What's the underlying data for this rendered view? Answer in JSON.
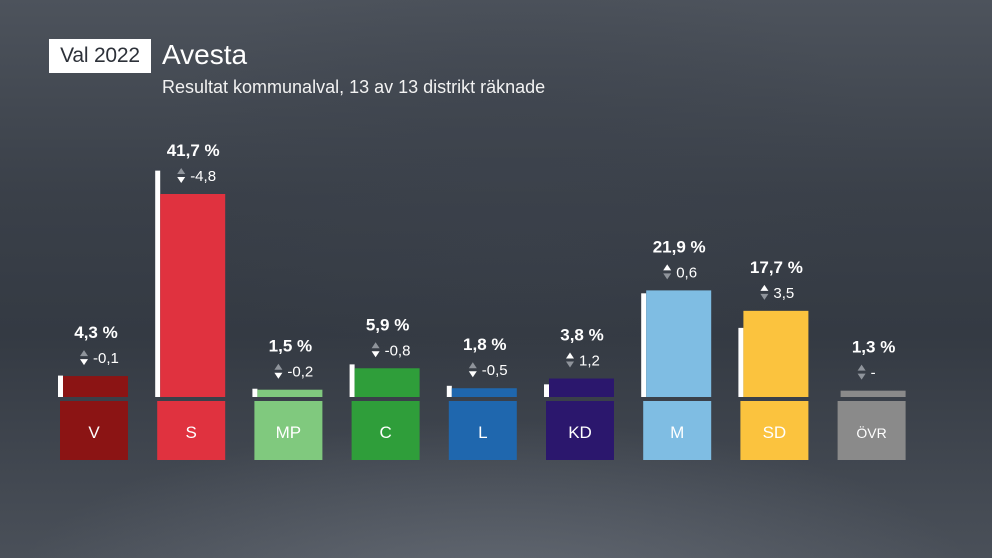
{
  "header": {
    "badge": "Val 2022",
    "title": "Avesta",
    "subtitle": "Resultat kommunalval, 13 av 13 distrikt räknade"
  },
  "chart_data": {
    "type": "bar",
    "categories": [
      "V",
      "S",
      "MP",
      "C",
      "L",
      "KD",
      "M",
      "SD",
      "ÖVR"
    ],
    "values": [
      4.3,
      41.7,
      1.5,
      5.9,
      1.8,
      3.8,
      21.9,
      17.7,
      1.3
    ],
    "previous": [
      4.4,
      46.5,
      1.7,
      6.7,
      2.3,
      2.6,
      21.3,
      14.2,
      null
    ],
    "value_labels": [
      "4,3 %",
      "41,7 %",
      "1,5 %",
      "5,9 %",
      "1,8 %",
      "3,8 %",
      "21,9 %",
      "17,7 %",
      "1,3 %"
    ],
    "change_labels": [
      "-0,1",
      "-4,8",
      "-0,2",
      "-0,8",
      "-0,5",
      "1,2",
      "0,6",
      "3,5",
      "-"
    ],
    "colors": [
      "#8b1414",
      "#e0323f",
      "#80c97e",
      "#2f9e3a",
      "#1f67ae",
      "#2b176d",
      "#7fbde3",
      "#fbc33e",
      "#8a8a8a"
    ],
    "label_colors": [
      "#ffffff",
      "#ffffff",
      "#ffffff",
      "#ffffff",
      "#ffffff",
      "#ffffff",
      "#ffffff",
      "#ffffff",
      "#ffffff"
    ]
  }
}
